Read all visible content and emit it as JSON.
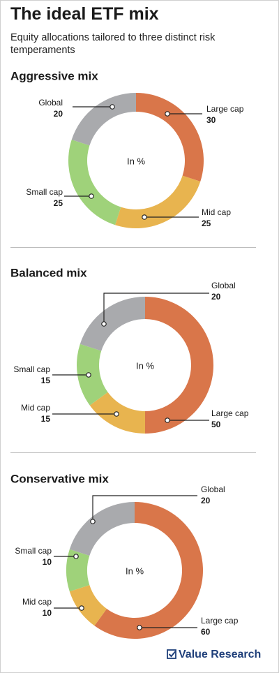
{
  "title": "The ideal ETF mix",
  "subtitle": "Equity allocations tailored to three distinct risk temperaments",
  "brand": "Value Research",
  "chart_data": [
    {
      "type": "donut",
      "title": "Aggressive mix",
      "center_label": "In %",
      "categories": [
        "Large cap",
        "Mid cap",
        "Small cap",
        "Global"
      ],
      "values": [
        30,
        25,
        25,
        20
      ],
      "colors": [
        "#d9764a",
        "#e8b44f",
        "#9fd27a",
        "#a9aaad"
      ]
    },
    {
      "type": "donut",
      "title": "Balanced mix",
      "center_label": "In %",
      "categories": [
        "Large cap",
        "Mid cap",
        "Small cap",
        "Global"
      ],
      "values": [
        50,
        15,
        15,
        20
      ],
      "colors": [
        "#d9764a",
        "#e8b44f",
        "#9fd27a",
        "#a9aaad"
      ]
    },
    {
      "type": "donut",
      "title": "Conservative mix",
      "center_label": "In %",
      "categories": [
        "Large cap",
        "Mid cap",
        "Small cap",
        "Global"
      ],
      "values": [
        60,
        10,
        10,
        20
      ],
      "colors": [
        "#d9764a",
        "#e8b44f",
        "#9fd27a",
        "#a9aaad"
      ]
    }
  ]
}
